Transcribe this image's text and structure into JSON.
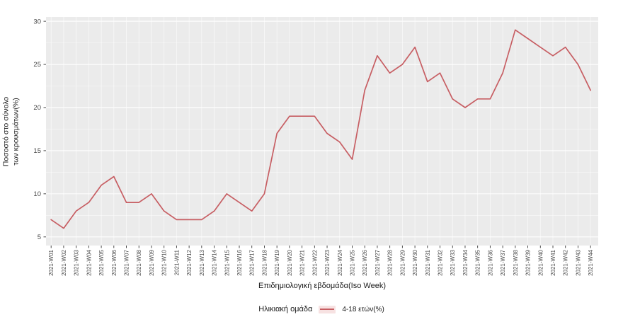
{
  "chart_data": {
    "type": "line",
    "title": "",
    "xlabel": "Επιδημιολογική εβδομάδα(Iso Week)",
    "ylabel": "Ποσοστό στο σύνολο των κρουσμάτων(%)",
    "ylabel_lines": [
      "Ποσοστό στο σύνολο",
      "των κρουσμάτων(%)"
    ],
    "legend_title": "Ηλικιακή ομάδα",
    "legend_position": "bottom",
    "grid": true,
    "ylim": [
      4.0,
      30.5
    ],
    "y_ticks": [
      5,
      10,
      15,
      20,
      25,
      30
    ],
    "categories": [
      "2021-W01",
      "2021-W02",
      "2021-W03",
      "2021-W04",
      "2021-W05",
      "2021-W06",
      "2021-W07",
      "2021-W08",
      "2021-W09",
      "2021-W10",
      "2021-W11",
      "2021-W12",
      "2021-W13",
      "2021-W14",
      "2021-W15",
      "2021-W16",
      "2021-W17",
      "2021-W18",
      "2021-W19",
      "2021-W20",
      "2021-W21",
      "2021-W22",
      "2021-W23",
      "2021-W24",
      "2021-W25",
      "2021-W26",
      "2021-W27",
      "2021-W28",
      "2021-W29",
      "2021-W30",
      "2021-W31",
      "2021-W32",
      "2021-W33",
      "2021-W34",
      "2021-W35",
      "2021-W36",
      "2021-W37",
      "2021-W38",
      "2021-W39",
      "2021-W40",
      "2021-W41",
      "2021-W42",
      "2021-W43",
      "2021-W44"
    ],
    "series": [
      {
        "name": "4-18 ετών(%)",
        "color": "#c75e63",
        "values": [
          7,
          6,
          8,
          9,
          11,
          12,
          9,
          9,
          10,
          8,
          7,
          7,
          7,
          8,
          10,
          9,
          8,
          10,
          17,
          19,
          19,
          19,
          17,
          16,
          14,
          22,
          26,
          24,
          25,
          27,
          23,
          24,
          21,
          20,
          21,
          21,
          24,
          29,
          28,
          27,
          26,
          27,
          25,
          22
        ]
      }
    ]
  },
  "colors": {
    "panel_bg": "#ebebeb",
    "grid_major": "#ffffff",
    "grid_minor": "#ffffff",
    "tick_text": "#4a4a4a",
    "tick_mark": "#333333",
    "title_text": "#1a1a1a"
  }
}
